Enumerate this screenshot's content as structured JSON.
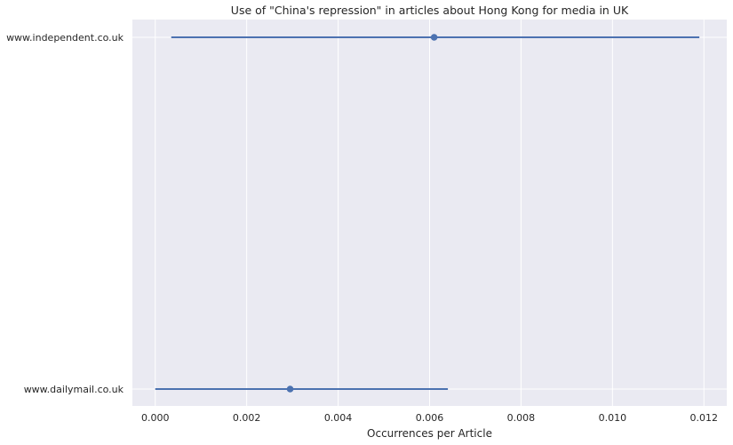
{
  "chart_data": {
    "type": "point-errorbar",
    "title": "Use of \"China's repression\" in articles about Hong Kong for media in UK",
    "xlabel": "Occurrences per Article",
    "ylabel": "",
    "xlim": [
      -0.0005,
      0.0125
    ],
    "x_ticks": [
      0.0,
      0.002,
      0.004,
      0.006,
      0.008,
      0.01,
      0.012
    ],
    "x_tick_labels": [
      "0.000",
      "0.002",
      "0.004",
      "0.006",
      "0.008",
      "0.010",
      "0.012"
    ],
    "grid": true,
    "categories": [
      "www.independent.co.uk",
      "www.dailymail.co.uk"
    ],
    "series": [
      {
        "points": [
          {
            "category": "www.independent.co.uk",
            "value": 0.0061,
            "ci_low": 0.00035,
            "ci_high": 0.0119
          },
          {
            "category": "www.dailymail.co.uk",
            "value": 0.00295,
            "ci_low": 0.0,
            "ci_high": 0.0064
          }
        ],
        "color": "#4c72b0"
      }
    ],
    "background_color": "#eaeaf2",
    "grid_color": "#ffffff"
  }
}
